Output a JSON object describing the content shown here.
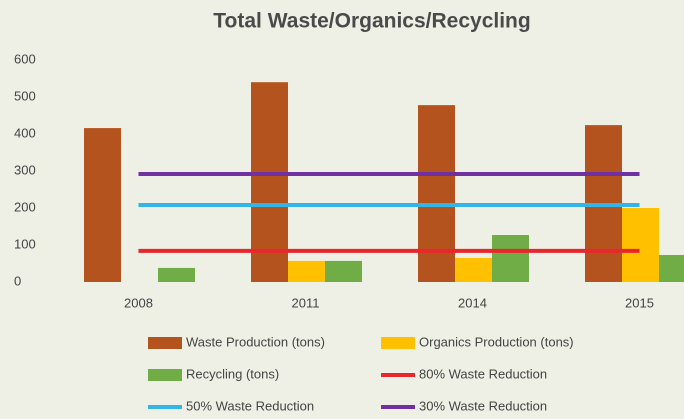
{
  "chart_data": {
    "type": "bar",
    "title": "Total Waste/Organics/Recycling",
    "categories": [
      "2008",
      "2011",
      "2014",
      "2015"
    ],
    "series": [
      {
        "name": "Waste Production (tons)",
        "type": "bar",
        "color": "#b5531f",
        "values": [
          416,
          540,
          478,
          424
        ]
      },
      {
        "name": "Organics Production (tons)",
        "type": "bar",
        "color": "#ffc000",
        "values": [
          null,
          57,
          65,
          200
        ]
      },
      {
        "name": "Recycling (tons)",
        "type": "bar",
        "color": "#70ad47",
        "values": [
          38,
          57,
          127,
          73
        ]
      },
      {
        "name": "80% Waste Reduction",
        "type": "line",
        "color": "#e8262b",
        "values": [
          84,
          84,
          84,
          84
        ]
      },
      {
        "name": "50% Waste Reduction",
        "type": "line",
        "color": "#33b5e8",
        "values": [
          208,
          208,
          208,
          208
        ]
      },
      {
        "name": "30% Waste Reduction",
        "type": "line",
        "color": "#7030a0",
        "values": [
          292,
          292,
          292,
          292
        ]
      }
    ],
    "ylim": [
      0,
      600
    ],
    "yticks": [
      0,
      100,
      200,
      300,
      400,
      500,
      600
    ],
    "grid": false
  }
}
